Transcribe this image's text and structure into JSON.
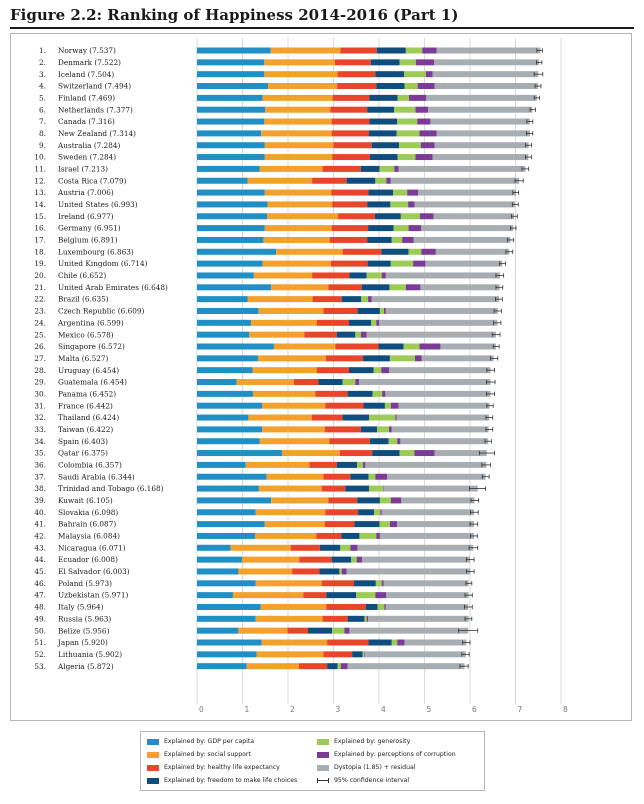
{
  "header": {
    "title": "Figure 2.2: Ranking of Happiness 2014-2016 (Part 1)"
  },
  "legend": {
    "items": [
      {
        "key": "gdp",
        "label": "Explained by: GDP per capita",
        "color": "#1f8fc6"
      },
      {
        "key": "social",
        "label": "Explained by: social support",
        "color": "#f3a12c"
      },
      {
        "key": "health",
        "label": "Explained by: healthy life expectancy",
        "color": "#e8462a"
      },
      {
        "key": "freedom",
        "label": "Explained by: freedom to make life choices",
        "color": "#0f4d7e"
      },
      {
        "key": "generosity",
        "label": "Explained by: generosity",
        "color": "#9ccc55"
      },
      {
        "key": "corruption",
        "label": "Explained by: perceptions of corruption",
        "color": "#7b3b96"
      },
      {
        "key": "dystopia",
        "label": "Dystopia (1.85) + residual",
        "color": "#a7adb1"
      },
      {
        "key": "ci",
        "label": "95% confidence interval",
        "color": "#333333"
      }
    ]
  },
  "chart_data": {
    "type": "bar",
    "orientation": "horizontal",
    "stacked": true,
    "title": "Figure 2.2: Ranking of Happiness 2014-2016 (Part 1)",
    "xlim": [
      0,
      8
    ],
    "xticks": [
      "0",
      "1",
      "2",
      "3",
      "4",
      "5",
      "6",
      "7",
      "8"
    ],
    "grid": true,
    "legend_position": "bottom",
    "series": [
      {
        "name": "Explained by: GDP per capita",
        "color": "#1f8fc6"
      },
      {
        "name": "Explained by: social support",
        "color": "#f3a12c"
      },
      {
        "name": "Explained by: healthy life expectancy",
        "color": "#e8462a"
      },
      {
        "name": "Explained by: freedom to make life choices",
        "color": "#0f4d7e"
      },
      {
        "name": "Explained by: generosity",
        "color": "#9ccc55"
      },
      {
        "name": "Explained by: perceptions of corruption",
        "color": "#7b3b96"
      },
      {
        "name": "Dystopia (1.85) + residual",
        "color": "#a7adb1"
      }
    ],
    "rows": [
      {
        "rank": "1.",
        "label": "Norway (7.537)",
        "score": 7.537,
        "values": [
          1.62,
          1.53,
          0.8,
          0.64,
          0.36,
          0.32,
          2.28
        ],
        "ci": [
          7.47,
          7.59
        ]
      },
      {
        "rank": "2.",
        "label": "Denmark (7.522)",
        "score": 7.522,
        "values": [
          1.48,
          1.55,
          0.79,
          0.63,
          0.36,
          0.4,
          2.31
        ],
        "ci": [
          7.46,
          7.58
        ]
      },
      {
        "rank": "3.",
        "label": "Iceland (7.504)",
        "score": 7.504,
        "values": [
          1.48,
          1.61,
          0.83,
          0.63,
          0.48,
          0.15,
          2.32
        ],
        "ci": [
          7.41,
          7.6
        ]
      },
      {
        "rank": "4.",
        "label": "Switzerland (7.494)",
        "score": 7.494,
        "values": [
          1.56,
          1.52,
          0.86,
          0.62,
          0.29,
          0.37,
          2.28
        ],
        "ci": [
          7.43,
          7.56
        ]
      },
      {
        "rank": "5.",
        "label": "Finland (7.469)",
        "score": 7.469,
        "values": [
          1.44,
          1.54,
          0.81,
          0.62,
          0.25,
          0.38,
          2.43
        ],
        "ci": [
          7.41,
          7.53
        ]
      },
      {
        "rank": "6.",
        "label": "Netherlands (7.377)",
        "score": 7.377,
        "values": [
          1.5,
          1.43,
          0.81,
          0.59,
          0.47,
          0.28,
          2.29
        ],
        "ci": [
          7.32,
          7.44
        ]
      },
      {
        "rank": "7.",
        "label": "Canada (7.316)",
        "score": 7.316,
        "values": [
          1.48,
          1.48,
          0.83,
          0.61,
          0.44,
          0.29,
          2.19
        ],
        "ci": [
          7.25,
          7.38
        ]
      },
      {
        "rank": "8.",
        "label": "New Zealand (7.314)",
        "score": 7.314,
        "values": [
          1.41,
          1.55,
          0.82,
          0.61,
          0.5,
          0.38,
          2.05
        ],
        "ci": [
          7.24,
          7.38
        ]
      },
      {
        "rank": "9.",
        "label": "Australia (7.284)",
        "score": 7.284,
        "values": [
          1.49,
          1.51,
          0.84,
          0.6,
          0.48,
          0.3,
          2.07
        ],
        "ci": [
          7.22,
          7.35
        ]
      },
      {
        "rank": "10.",
        "label": "Sweden (7.284)",
        "score": 7.284,
        "values": [
          1.49,
          1.48,
          0.83,
          0.61,
          0.39,
          0.38,
          2.1
        ],
        "ci": [
          7.22,
          7.35
        ]
      },
      {
        "rank": "11.",
        "label": "Israel (7.213)",
        "score": 7.213,
        "values": [
          1.38,
          1.38,
          0.84,
          0.41,
          0.33,
          0.09,
          2.79
        ],
        "ci": [
          7.14,
          7.29
        ]
      },
      {
        "rank": "12.",
        "label": "Costa Rica (7.079)",
        "score": 7.079,
        "values": [
          1.11,
          1.42,
          0.76,
          0.63,
          0.24,
          0.1,
          2.82
        ],
        "ci": [
          6.99,
          7.17
        ]
      },
      {
        "rank": "13.",
        "label": "Austria (7.006)",
        "score": 7.006,
        "values": [
          1.49,
          1.46,
          0.82,
          0.54,
          0.31,
          0.24,
          2.15
        ],
        "ci": [
          6.94,
          7.07
        ]
      },
      {
        "rank": "14.",
        "label": "United States (6.993)",
        "score": 6.993,
        "values": [
          1.55,
          1.42,
          0.77,
          0.51,
          0.39,
          0.14,
          2.21
        ],
        "ci": [
          6.93,
          7.06
        ]
      },
      {
        "rank": "15.",
        "label": "Ireland (6.977)",
        "score": 6.977,
        "values": [
          1.54,
          1.56,
          0.81,
          0.57,
          0.42,
          0.3,
          1.77
        ],
        "ci": [
          6.91,
          7.04
        ]
      },
      {
        "rank": "16.",
        "label": "Germany (6.951)",
        "score": 6.951,
        "values": [
          1.49,
          1.47,
          0.8,
          0.56,
          0.33,
          0.28,
          2.02
        ],
        "ci": [
          6.89,
          7.01
        ]
      },
      {
        "rank": "17.",
        "label": "Belgium (6.891)",
        "score": 6.891,
        "values": [
          1.46,
          1.46,
          0.82,
          0.54,
          0.23,
          0.25,
          2.13
        ],
        "ci": [
          6.82,
          6.96
        ]
      },
      {
        "rank": "18.",
        "label": "Luxembourg (6.863)",
        "score": 6.863,
        "values": [
          1.74,
          1.46,
          0.85,
          0.6,
          0.28,
          0.32,
          1.61
        ],
        "ci": [
          6.79,
          6.94
        ]
      },
      {
        "rank": "19.",
        "label": "United Kingdom (6.714)",
        "score": 6.714,
        "values": [
          1.44,
          1.5,
          0.81,
          0.51,
          0.49,
          0.27,
          1.69
        ],
        "ci": [
          6.65,
          6.78
        ]
      },
      {
        "rank": "20.",
        "label": "Chile (6.652)",
        "score": 6.652,
        "values": [
          1.25,
          1.28,
          0.82,
          0.38,
          0.33,
          0.09,
          2.51
        ],
        "ci": [
          6.57,
          6.74
        ]
      },
      {
        "rank": "21.",
        "label": "United Arab Emirates (6.648)",
        "score": 6.648,
        "values": [
          1.63,
          1.26,
          0.73,
          0.61,
          0.36,
          0.32,
          1.74
        ],
        "ci": [
          6.57,
          6.72
        ]
      },
      {
        "rank": "22.",
        "label": "Brazil (6.635)",
        "score": 6.635,
        "values": [
          1.11,
          1.43,
          0.64,
          0.43,
          0.15,
          0.08,
          2.8
        ],
        "ci": [
          6.56,
          6.71
        ]
      },
      {
        "rank": "23.",
        "label": "Czech Republic (6.609)",
        "score": 6.609,
        "values": [
          1.35,
          1.43,
          0.75,
          0.49,
          0.09,
          0.04,
          2.46
        ],
        "ci": [
          6.53,
          6.69
        ]
      },
      {
        "rank": "24.",
        "label": "Argentina (6.599)",
        "score": 6.599,
        "values": [
          1.19,
          1.44,
          0.71,
          0.49,
          0.11,
          0.06,
          2.6
        ],
        "ci": [
          6.52,
          6.68
        ]
      },
      {
        "rank": "25.",
        "label": "Mexico (6.578)",
        "score": 6.578,
        "values": [
          1.15,
          1.21,
          0.71,
          0.41,
          0.12,
          0.13,
          2.84
        ],
        "ci": [
          6.49,
          6.66
        ]
      },
      {
        "rank": "26.",
        "label": "Singapore (6.572)",
        "score": 6.572,
        "values": [
          1.69,
          1.35,
          0.95,
          0.55,
          0.35,
          0.46,
          1.22
        ],
        "ci": [
          6.51,
          6.64
        ]
      },
      {
        "rank": "27.",
        "label": "Malta (6.527)",
        "score": 6.527,
        "values": [
          1.34,
          1.49,
          0.82,
          0.59,
          0.55,
          0.15,
          1.58
        ],
        "ci": [
          6.45,
          6.61
        ]
      },
      {
        "rank": "28.",
        "label": "Uruguay (6.454)",
        "score": 6.454,
        "values": [
          1.22,
          1.41,
          0.71,
          0.54,
          0.17,
          0.17,
          2.23
        ],
        "ci": [
          6.37,
          6.54
        ]
      },
      {
        "rank": "29.",
        "label": "Guatemala (6.454)",
        "score": 6.454,
        "values": [
          0.87,
          1.26,
          0.54,
          0.53,
          0.28,
          0.08,
          2.89
        ],
        "ci": [
          6.36,
          6.55
        ]
      },
      {
        "rank": "30.",
        "label": "Panama (6.452)",
        "score": 6.452,
        "values": [
          1.23,
          1.37,
          0.71,
          0.55,
          0.21,
          0.07,
          2.31
        ],
        "ci": [
          6.36,
          6.54
        ]
      },
      {
        "rank": "31.",
        "label": "France (6.442)",
        "score": 6.442,
        "values": [
          1.43,
          1.39,
          0.84,
          0.47,
          0.13,
          0.17,
          2.0
        ],
        "ci": [
          6.37,
          6.51
        ]
      },
      {
        "rank": "32.",
        "label": "Thailand (6.424)",
        "score": 6.424,
        "values": [
          1.13,
          1.39,
          0.68,
          0.58,
          0.58,
          0.03,
          2.03
        ],
        "ci": [
          6.35,
          6.5
        ]
      },
      {
        "rank": "33.",
        "label": "Taiwan (6.422)",
        "score": 6.422,
        "values": [
          1.43,
          1.38,
          0.79,
          0.36,
          0.26,
          0.06,
          2.13
        ],
        "ci": [
          6.35,
          6.5
        ]
      },
      {
        "rank": "34.",
        "label": "Spain (6.403)",
        "score": 6.403,
        "values": [
          1.38,
          1.53,
          0.89,
          0.41,
          0.19,
          0.07,
          1.93
        ],
        "ci": [
          6.33,
          6.47
        ]
      },
      {
        "rank": "35.",
        "label": "Qatar (6.375)",
        "score": 6.375,
        "values": [
          1.87,
          1.27,
          0.71,
          0.6,
          0.33,
          0.44,
          1.15
        ],
        "ci": [
          6.21,
          6.54
        ]
      },
      {
        "rank": "36.",
        "label": "Colombia (6.357)",
        "score": 6.357,
        "values": [
          1.07,
          1.4,
          0.6,
          0.45,
          0.13,
          0.05,
          2.66
        ],
        "ci": [
          6.26,
          6.45
        ]
      },
      {
        "rank": "37.",
        "label": "Saudi Arabia (6.344)",
        "score": 6.344,
        "values": [
          1.53,
          1.25,
          0.59,
          0.4,
          0.15,
          0.26,
          2.16
        ],
        "ci": [
          6.27,
          6.42
        ]
      },
      {
        "rank": "38.",
        "label": "Trinidad and Tobago (6.168)",
        "score": 6.168,
        "values": [
          1.36,
          1.38,
          0.52,
          0.52,
          0.31,
          0.01,
          2.07
        ],
        "ci": [
          5.99,
          6.34
        ]
      },
      {
        "rank": "39.",
        "label": "Kuwait (6.105)",
        "score": 6.105,
        "values": [
          1.63,
          1.26,
          0.63,
          0.5,
          0.24,
          0.23,
          1.61
        ],
        "ci": [
          6.02,
          6.19
        ]
      },
      {
        "rank": "40.",
        "label": "Slovakia (6.098)",
        "score": 6.098,
        "values": [
          1.29,
          1.53,
          0.72,
          0.35,
          0.14,
          0.03,
          2.03
        ],
        "ci": [
          6.01,
          6.18
        ]
      },
      {
        "rank": "41.",
        "label": "Bahrain (6.087)",
        "score": 6.087,
        "values": [
          1.49,
          1.32,
          0.65,
          0.55,
          0.23,
          0.16,
          1.69
        ],
        "ci": [
          6.0,
          6.17
        ]
      },
      {
        "rank": "42.",
        "label": "Malaysia (6.084)",
        "score": 6.084,
        "values": [
          1.28,
          1.34,
          0.55,
          0.4,
          0.37,
          0.08,
          2.07
        ],
        "ci": [
          6.01,
          6.16
        ]
      },
      {
        "rank": "43.",
        "label": "Nicaragua (6.071)",
        "score": 6.071,
        "values": [
          0.74,
          1.32,
          0.64,
          0.45,
          0.22,
          0.16,
          2.54
        ],
        "ci": [
          5.98,
          6.17
        ]
      },
      {
        "rank": "44.",
        "label": "Ecuador (6.008)",
        "score": 6.008,
        "values": [
          0.99,
          1.26,
          0.71,
          0.43,
          0.12,
          0.12,
          2.37
        ],
        "ci": [
          5.92,
          6.09
        ]
      },
      {
        "rank": "45.",
        "label": "El Salvador (6.003)",
        "score": 6.003,
        "values": [
          0.91,
          1.18,
          0.6,
          0.44,
          0.05,
          0.11,
          2.72
        ],
        "ci": [
          5.92,
          6.09
        ]
      },
      {
        "rank": "46.",
        "label": "Poland (5.973)",
        "score": 5.973,
        "values": [
          1.29,
          1.45,
          0.71,
          0.48,
          0.13,
          0.04,
          1.87
        ],
        "ci": [
          5.91,
          6.04
        ]
      },
      {
        "rank": "47.",
        "label": "Uzbekistan (5.971)",
        "score": 5.971,
        "values": [
          0.79,
          1.55,
          0.5,
          0.66,
          0.42,
          0.24,
          1.81
        ],
        "ci": [
          5.89,
          6.05
        ]
      },
      {
        "rank": "48.",
        "label": "Italy (5.964)",
        "score": 5.964,
        "values": [
          1.4,
          1.44,
          0.87,
          0.26,
          0.15,
          0.03,
          1.81
        ],
        "ci": [
          5.88,
          6.05
        ]
      },
      {
        "rank": "49.",
        "label": "Russia (5.963)",
        "score": 5.963,
        "values": [
          1.29,
          1.47,
          0.55,
          0.37,
          0.05,
          0.03,
          2.21
        ],
        "ci": [
          5.89,
          6.04
        ]
      },
      {
        "rank": "50.",
        "label": "Belize (5.956)",
        "score": 5.956,
        "values": [
          0.91,
          1.08,
          0.45,
          0.53,
          0.27,
          0.11,
          2.61
        ],
        "ci": [
          5.75,
          6.17
        ]
      },
      {
        "rank": "51.",
        "label": "Japan (5.920)",
        "score": 5.92,
        "values": [
          1.42,
          1.44,
          0.91,
          0.51,
          0.12,
          0.16,
          1.36
        ],
        "ci": [
          5.84,
          6.0
        ]
      },
      {
        "rank": "52.",
        "label": "Lithuania (5.902)",
        "score": 5.902,
        "values": [
          1.31,
          1.47,
          0.63,
          0.23,
          0.03,
          0.01,
          2.23
        ],
        "ci": [
          5.82,
          5.98
        ]
      },
      {
        "rank": "53.",
        "label": "Algeria (5.872)",
        "score": 5.872,
        "values": [
          1.09,
          1.15,
          0.62,
          0.23,
          0.07,
          0.15,
          2.57
        ],
        "ci": [
          5.78,
          5.96
        ]
      }
    ]
  }
}
